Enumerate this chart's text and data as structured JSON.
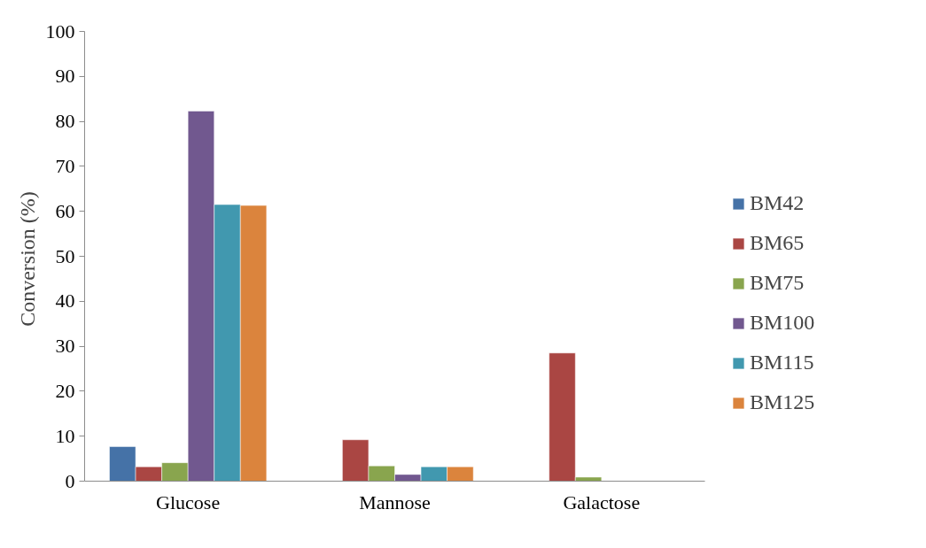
{
  "chart_data": {
    "type": "bar",
    "ylabel": "Conversion  (%)",
    "categories": [
      "Glucose",
      "Mannose",
      "Galactose"
    ],
    "ylim": [
      0,
      100
    ],
    "yticks": [
      0,
      10,
      20,
      30,
      40,
      50,
      60,
      70,
      80,
      90,
      100
    ],
    "grid": false,
    "legend": "right",
    "series": [
      {
        "name": "BM42",
        "color": "#4572a7",
        "values": [
          7.7,
          null,
          null
        ]
      },
      {
        "name": "BM65",
        "color": "#aa4643",
        "values": [
          3.2,
          9.2,
          28.5
        ]
      },
      {
        "name": "BM75",
        "color": "#89a54e",
        "values": [
          4.1,
          3.4,
          0.9
        ]
      },
      {
        "name": "BM100",
        "color": "#71588f",
        "values": [
          82.3,
          1.5,
          null
        ]
      },
      {
        "name": "BM115",
        "color": "#4198af",
        "values": [
          61.5,
          3.2,
          null
        ]
      },
      {
        "name": "BM125",
        "color": "#db843d",
        "values": [
          61.3,
          3.2,
          null
        ]
      }
    ]
  }
}
